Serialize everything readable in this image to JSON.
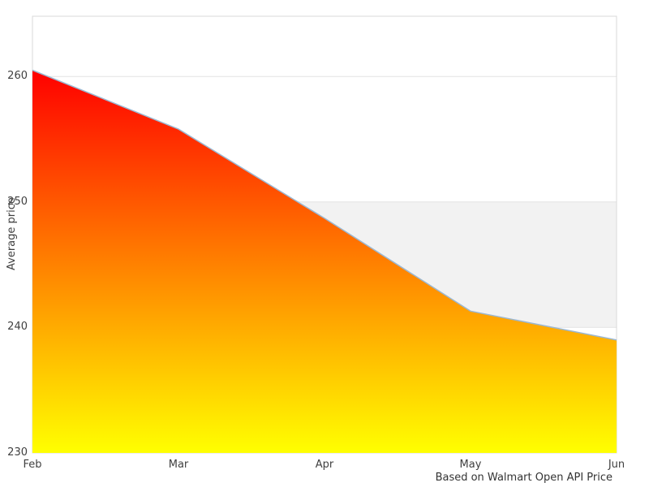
{
  "chart_data": {
    "type": "area",
    "title": "",
    "x": [
      "Feb",
      "Mar",
      "Apr",
      "May",
      "Jun"
    ],
    "series": [
      {
        "name": "Average price",
        "values": [
          260.5,
          255.8,
          248.7,
          241.3,
          239.0
        ]
      }
    ],
    "xlabel": "",
    "ylabel": "Average price",
    "caption": "Based on Walmart Open API Price",
    "ylim": [
      230,
      264.8
    ],
    "yticks": [
      230,
      240,
      250,
      260
    ],
    "band_y": [
      240,
      250
    ],
    "grid": "horizontal",
    "legend": "none",
    "colors": {
      "gradient_top": "#ff0000",
      "gradient_bottom": "#ffff00",
      "line": "#9cb8d2",
      "band": "#f2f2f2",
      "gridline": "#e4e4e4",
      "frame": "#d9d9d9",
      "tick_text": "#404040",
      "caption_text": "#333333",
      "background": "#ffffff"
    }
  }
}
